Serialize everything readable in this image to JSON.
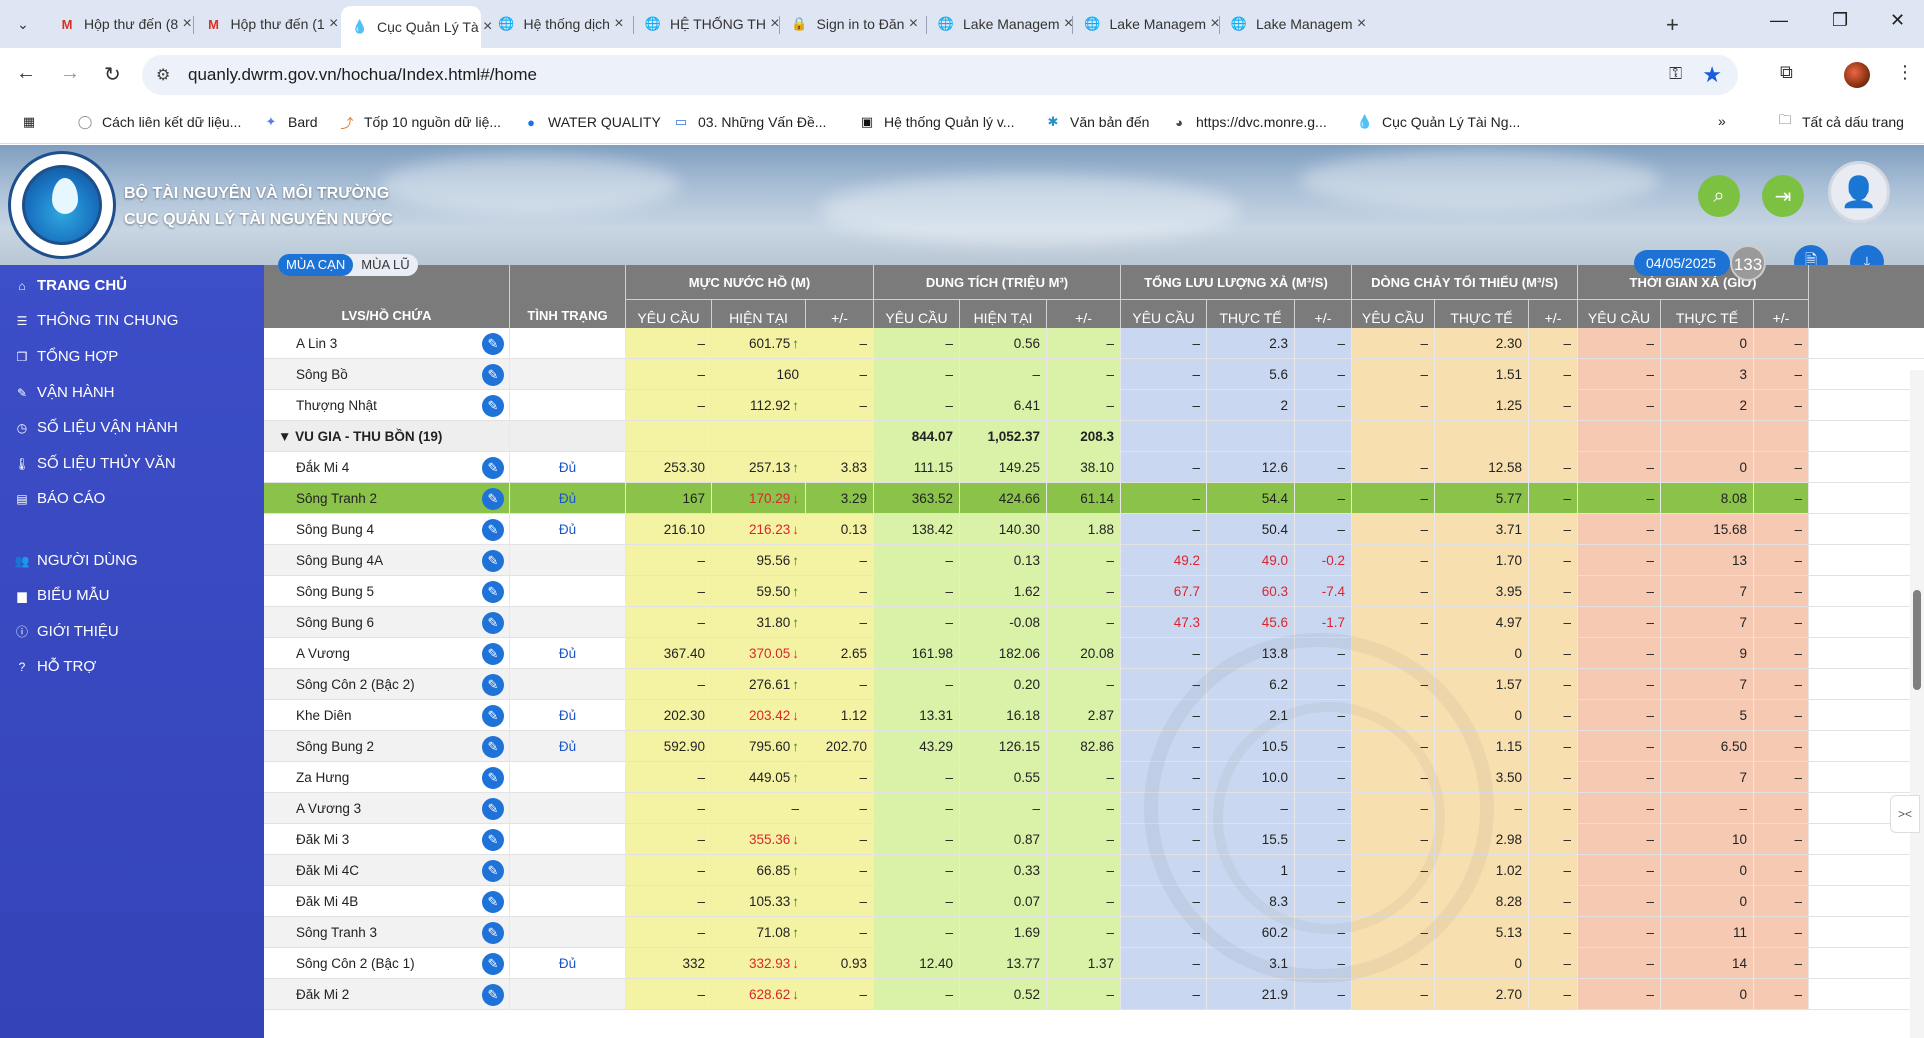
{
  "browser": {
    "tabs": [
      {
        "title": "Hộp thư đến (8",
        "icon": "gmail-icon"
      },
      {
        "title": "Hộp thư đến (1",
        "icon": "gmail-icon"
      },
      {
        "title": "Cục Quản Lý Tà",
        "icon": "water-drop-icon"
      },
      {
        "title": "Hệ thống dịch",
        "icon": "globe-icon"
      },
      {
        "title": "HỆ THỐNG TH",
        "icon": "globe-icon"
      },
      {
        "title": "Sign in to Đăn",
        "icon": "lock-icon"
      },
      {
        "title": "Lake Managem",
        "icon": "globe-icon"
      },
      {
        "title": "Lake Managem",
        "icon": "globe-icon"
      },
      {
        "title": "Lake Managem",
        "icon": "globe-icon"
      }
    ],
    "url": "quanly.dwrm.gov.vn/hochua/Index.html#/home",
    "bookmarks": [
      "Cách liên kết dữ liệu...",
      "Bard",
      "Tốp 10 nguồn dữ liệ...",
      "WATER QUALITY",
      "03. Những Vấn Đề...",
      "Hệ thống Quản lý v...",
      "Văn bản đến",
      "https://dvc.monre.g...",
      "Cục Quản Lý Tài Ng..."
    ],
    "all_bookmarks": "Tất cả dấu trang"
  },
  "header": {
    "org_line1": "BỘ TÀI NGUYÊN VÀ MÔI TRƯỜNG",
    "org_line2": "CỤC QUẢN LÝ TÀI NGUYÊN NƯỚC",
    "date": "04/05/2025",
    "count": "133"
  },
  "sidebar": {
    "items": [
      {
        "label": "TRANG CHỦ",
        "icon": "home-icon"
      },
      {
        "label": "THÔNG TIN CHUNG",
        "icon": "list-icon"
      },
      {
        "label": "TỔNG HỢP",
        "icon": "copy-icon"
      },
      {
        "label": "VẬN HÀNH",
        "icon": "edit-icon"
      },
      {
        "label": "SỐ LIỆU VẬN HÀNH",
        "icon": "clock-icon"
      },
      {
        "label": "SỐ LIỆU THỦY VĂN",
        "icon": "thermometer-icon"
      },
      {
        "label": "BÁO CÁO",
        "icon": "chart-icon"
      },
      {
        "label": "NGƯỜI DÙNG",
        "icon": "users-icon"
      },
      {
        "label": "BIỂU MẪU",
        "icon": "folder-icon"
      },
      {
        "label": "GIỚI THIỆU",
        "icon": "info-icon"
      },
      {
        "label": "HỖ TRỢ",
        "icon": "help-icon"
      }
    ]
  },
  "season": {
    "dry": "MÙA CẠN",
    "flood": "MÙA LŨ"
  },
  "table": {
    "headers": {
      "reservoir": "LVS/HỒ CHỨA",
      "status": "TÌNH TRẠNG",
      "water_level": "MỰC NƯỚC HỒ (M)",
      "capacity": "DUNG TÍCH (TRIỆU M³)",
      "discharge": "TỔNG LƯU LƯỢNG XẢ (M³/S)",
      "min_flow": "DÒNG CHẢY TỐI THIỂU (M³/S)",
      "duration": "THỜI GIAN XẢ (GIỜ)",
      "required": "YÊU CẦU",
      "current": "HIỆN TẠI",
      "actual": "THỰC TẾ",
      "delta": "+/-"
    },
    "rows": [
      {
        "name": "A Lin 3",
        "status": "",
        "c": [
          "–",
          "601.75",
          "–",
          "–",
          "0.56",
          "–",
          "–",
          "2.3",
          "–",
          "–",
          "2.30",
          "–",
          "–",
          "0",
          "–"
        ],
        "trend": "up"
      },
      {
        "name": "Sông Bồ",
        "status": "",
        "c": [
          "–",
          "160",
          "–",
          "–",
          "–",
          "–",
          "–",
          "5.6",
          "–",
          "–",
          "1.51",
          "–",
          "–",
          "3",
          "–"
        ],
        "trend": ""
      },
      {
        "name": "Thượng Nhật",
        "status": "",
        "c": [
          "–",
          "112.92",
          "–",
          "–",
          "6.41",
          "–",
          "–",
          "2",
          "–",
          "–",
          "1.25",
          "–",
          "–",
          "2",
          "–"
        ],
        "trend": "up"
      },
      {
        "group": true,
        "name": "VU GIA - THU BỒN (19)",
        "c": [
          "",
          "",
          "",
          "844.07",
          "1,052.37",
          "208.3",
          "",
          "",
          "",
          "",
          "",
          "",
          "",
          "",
          ""
        ]
      },
      {
        "name": "Đắk Mi 4",
        "status": "Đủ",
        "c": [
          "253.30",
          "257.13",
          "3.83",
          "111.15",
          "149.25",
          "38.10",
          "–",
          "12.6",
          "–",
          "–",
          "12.58",
          "–",
          "–",
          "0",
          "–"
        ],
        "trend": "up"
      },
      {
        "name": "Sông Tranh 2",
        "status": "Đủ",
        "hl": true,
        "c": [
          "167",
          "170.29",
          "3.29",
          "363.52",
          "424.66",
          "61.14",
          "–",
          "54.4",
          "–",
          "–",
          "5.77",
          "–",
          "–",
          "8.08",
          "–"
        ],
        "trend": "down"
      },
      {
        "name": "Sông Bung 4",
        "status": "Đủ",
        "c": [
          "216.10",
          "216.23",
          "0.13",
          "138.42",
          "140.30",
          "1.88",
          "–",
          "50.4",
          "–",
          "–",
          "3.71",
          "–",
          "–",
          "15.68",
          "–"
        ],
        "trend": "down"
      },
      {
        "name": "Sông Bung 4A",
        "status": "",
        "c": [
          "–",
          "95.56",
          "–",
          "–",
          "0.13",
          "–",
          "49.2",
          "49.0",
          "-0.2",
          "–",
          "1.70",
          "–",
          "–",
          "13",
          "–"
        ],
        "trend": "up",
        "redq": true
      },
      {
        "name": "Sông Bung 5",
        "status": "",
        "c": [
          "–",
          "59.50",
          "–",
          "–",
          "1.62",
          "–",
          "67.7",
          "60.3",
          "-7.4",
          "–",
          "3.95",
          "–",
          "–",
          "7",
          "–"
        ],
        "trend": "up",
        "redq": true
      },
      {
        "name": "Sông Bung 6",
        "status": "",
        "c": [
          "–",
          "31.80",
          "–",
          "–",
          "-0.08",
          "–",
          "47.3",
          "45.6",
          "-1.7",
          "–",
          "4.97",
          "–",
          "–",
          "7",
          "–"
        ],
        "trend": "up",
        "redq": true
      },
      {
        "name": "A Vương",
        "status": "Đủ",
        "c": [
          "367.40",
          "370.05",
          "2.65",
          "161.98",
          "182.06",
          "20.08",
          "–",
          "13.8",
          "–",
          "–",
          "0",
          "–",
          "–",
          "9",
          "–"
        ],
        "trend": "down"
      },
      {
        "name": "Sông Côn 2 (Bậc 2)",
        "status": "",
        "c": [
          "–",
          "276.61",
          "–",
          "–",
          "0.20",
          "–",
          "–",
          "6.2",
          "–",
          "–",
          "1.57",
          "–",
          "–",
          "7",
          "–"
        ],
        "trend": "up"
      },
      {
        "name": "Khe Diên",
        "status": "Đủ",
        "c": [
          "202.30",
          "203.42",
          "1.12",
          "13.31",
          "16.18",
          "2.87",
          "–",
          "2.1",
          "–",
          "–",
          "0",
          "–",
          "–",
          "5",
          "–"
        ],
        "trend": "down"
      },
      {
        "name": "Sông Bung 2",
        "status": "Đủ",
        "c": [
          "592.90",
          "795.60",
          "202.70",
          "43.29",
          "126.15",
          "82.86",
          "–",
          "10.5",
          "–",
          "–",
          "1.15",
          "–",
          "–",
          "6.50",
          "–"
        ],
        "trend": "up"
      },
      {
        "name": "Za Hưng",
        "status": "",
        "c": [
          "–",
          "449.05",
          "–",
          "–",
          "0.55",
          "–",
          "–",
          "10.0",
          "–",
          "–",
          "3.50",
          "–",
          "–",
          "7",
          "–"
        ],
        "trend": "up"
      },
      {
        "name": "A Vương 3",
        "status": "",
        "c": [
          "–",
          "–",
          "–",
          "–",
          "–",
          "–",
          "–",
          "–",
          "–",
          "–",
          "–",
          "–",
          "–",
          "–",
          "–"
        ],
        "trend": ""
      },
      {
        "name": "Đăk Mi 3",
        "status": "",
        "c": [
          "–",
          "355.36",
          "–",
          "–",
          "0.87",
          "–",
          "–",
          "15.5",
          "–",
          "–",
          "2.98",
          "–",
          "–",
          "10",
          "–"
        ],
        "trend": "down"
      },
      {
        "name": "Đăk Mi 4C",
        "status": "",
        "c": [
          "–",
          "66.85",
          "–",
          "–",
          "0.33",
          "–",
          "–",
          "1",
          "–",
          "–",
          "1.02",
          "–",
          "–",
          "0",
          "–"
        ],
        "trend": "up"
      },
      {
        "name": "Đăk Mi 4B",
        "status": "",
        "c": [
          "–",
          "105.33",
          "–",
          "–",
          "0.07",
          "–",
          "–",
          "8.3",
          "–",
          "–",
          "8.28",
          "–",
          "–",
          "0",
          "–"
        ],
        "trend": "up"
      },
      {
        "name": "Sông Tranh 3",
        "status": "",
        "c": [
          "–",
          "71.08",
          "–",
          "–",
          "1.69",
          "–",
          "–",
          "60.2",
          "–",
          "–",
          "5.13",
          "–",
          "–",
          "11",
          "–"
        ],
        "trend": "up"
      },
      {
        "name": "Sông Côn 2 (Bậc 1)",
        "status": "Đủ",
        "c": [
          "332",
          "332.93",
          "0.93",
          "12.40",
          "13.77",
          "1.37",
          "–",
          "3.1",
          "–",
          "–",
          "0",
          "–",
          "–",
          "14",
          "–"
        ],
        "trend": "down"
      },
      {
        "name": "Đăk Mi 2",
        "status": "",
        "c": [
          "–",
          "628.62",
          "–",
          "–",
          "0.52",
          "–",
          "–",
          "21.9",
          "–",
          "–",
          "2.70",
          "–",
          "–",
          "0",
          "–"
        ],
        "trend": "down"
      }
    ]
  },
  "colors": {
    "level": "#f4f3a4",
    "capacity": "#d9f2a8",
    "discharge": "#c9d8f0",
    "minflow": "#f7dfb0",
    "duration": "#f6c9b3",
    "highlight": "#8bc34a",
    "header": "#7b7b7b"
  }
}
